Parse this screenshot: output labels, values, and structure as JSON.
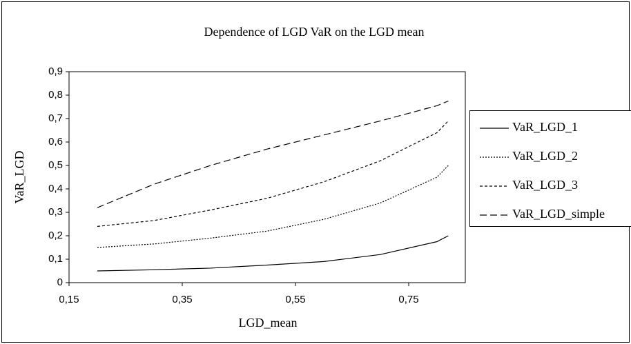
{
  "chart_data": {
    "type": "line",
    "title": "Dependence of  LGD VaR on the LGD mean",
    "x_label": "LGD_mean",
    "y_label": "VaR_LGD",
    "x": [
      0.2,
      0.3,
      0.4,
      0.5,
      0.6,
      0.7,
      0.8,
      0.82
    ],
    "series": [
      {
        "name": "VaR_LGD_1",
        "color": "#000000",
        "dash": "solid",
        "values": [
          0.05,
          0.055,
          0.062,
          0.075,
          0.09,
          0.12,
          0.175,
          0.2
        ]
      },
      {
        "name": "VaR_LGD_2",
        "color": "#000000",
        "dash": "dotted",
        "values": [
          0.15,
          0.165,
          0.19,
          0.22,
          0.27,
          0.34,
          0.45,
          0.5
        ]
      },
      {
        "name": "VaR_LGD_3",
        "color": "#000000",
        "dash": "short-dash",
        "values": [
          0.24,
          0.265,
          0.31,
          0.36,
          0.43,
          0.52,
          0.64,
          0.69
        ]
      },
      {
        "name": "VaR_LGD_simple",
        "color": "#000000",
        "dash": "long-dash",
        "values": [
          0.32,
          0.42,
          0.5,
          0.57,
          0.63,
          0.69,
          0.755,
          0.775
        ]
      }
    ],
    "xlim": [
      0.15,
      0.85
    ],
    "xticks": [
      {
        "value": 0.15,
        "label": "0,15"
      },
      {
        "value": 0.35,
        "label": "0,35"
      },
      {
        "value": 0.55,
        "label": "0,55"
      },
      {
        "value": 0.75,
        "label": "0,75"
      }
    ],
    "ylim": [
      0,
      0.9
    ],
    "yticks": [
      0,
      {
        "value": 0.1,
        "label": "0,1"
      },
      {
        "value": 0.2,
        "label": "0,2"
      },
      {
        "value": 0.3,
        "label": "0,3"
      },
      {
        "value": 0.4,
        "label": "0,4"
      },
      {
        "value": 0.5,
        "label": "0,5"
      },
      {
        "value": 0.6,
        "label": "0,6"
      },
      {
        "value": 0.7,
        "label": "0,7"
      },
      {
        "value": 0.8,
        "label": "0,8"
      },
      {
        "value": 0.9,
        "label": "0,9"
      }
    ],
    "grid": false,
    "legend": "right"
  }
}
